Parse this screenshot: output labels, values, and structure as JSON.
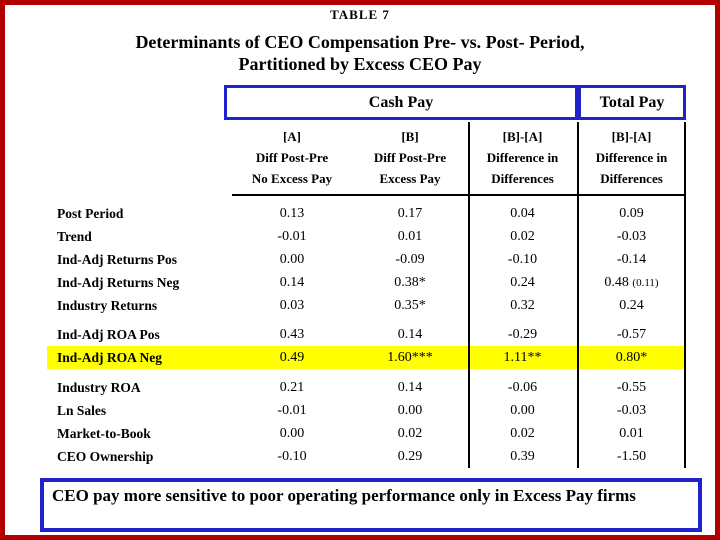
{
  "slide": {
    "border_color": "#b20000",
    "accent_blue": "#2222cc",
    "highlight_yellow": "#ffff00"
  },
  "header": {
    "table_label": "TABLE 7",
    "title_line1": "Determinants of CEO Compensation Pre- vs. Post- Period,",
    "title_line2": "Partitioned by Excess CEO Pay"
  },
  "pay_groups": {
    "cash_label": "Cash Pay",
    "total_label": "Total Pay"
  },
  "table": {
    "columns": [
      {
        "lines": [
          "[A]",
          "Diff Post-Pre",
          "No Excess Pay"
        ]
      },
      {
        "lines": [
          "[B]",
          "Diff Post-Pre",
          "Excess Pay"
        ]
      },
      {
        "lines": [
          "[B]-[A]",
          "Difference in",
          "Differences"
        ]
      },
      {
        "lines": [
          "[B]-[A]",
          "Difference in",
          "Differences"
        ]
      }
    ],
    "sections": [
      {
        "rows": [
          {
            "label": "Post Period",
            "values": [
              "0.13",
              "0.17",
              "0.04",
              "0.09"
            ],
            "highlight": false
          },
          {
            "label": "Trend",
            "values": [
              "-0.01",
              "0.01",
              "0.02",
              "-0.03"
            ],
            "highlight": false
          },
          {
            "label": "Ind-Adj Returns Pos",
            "values": [
              "0.00",
              "-0.09",
              "-0.10",
              "-0.14"
            ],
            "highlight": false
          },
          {
            "label": "Ind-Adj Returns Neg",
            "values": [
              "0.14",
              "0.38*",
              "0.24",
              "0.48 (0.11)"
            ],
            "highlight": false
          },
          {
            "label": "Industry Returns",
            "values": [
              "0.03",
              "0.35*",
              "0.32",
              "0.24"
            ],
            "highlight": false
          }
        ]
      },
      {
        "rows": [
          {
            "label": "Ind-Adj ROA Pos",
            "values": [
              "0.43",
              "0.14",
              "-0.29",
              "-0.57"
            ],
            "highlight": false
          },
          {
            "label": "Ind-Adj ROA Neg",
            "values": [
              "0.49",
              "1.60***",
              "1.11**",
              "0.80*"
            ],
            "highlight": true
          }
        ]
      },
      {
        "rows": [
          {
            "label": "Industry ROA",
            "values": [
              "0.21",
              "0.14",
              "-0.06",
              "-0.55"
            ],
            "highlight": false
          },
          {
            "label": "Ln Sales",
            "values": [
              "-0.01",
              "0.00",
              "0.00",
              "-0.03"
            ],
            "highlight": false
          },
          {
            "label": "Market-to-Book",
            "values": [
              "0.00",
              "0.02",
              "0.02",
              "0.01"
            ],
            "highlight": false
          },
          {
            "label": "CEO Ownership",
            "values": [
              "-0.10",
              "0.29",
              "0.39",
              "-1.50"
            ],
            "highlight": false
          }
        ]
      }
    ]
  },
  "footer": {
    "note": "CEO pay more sensitive to poor operating performance only in Excess Pay firms"
  }
}
